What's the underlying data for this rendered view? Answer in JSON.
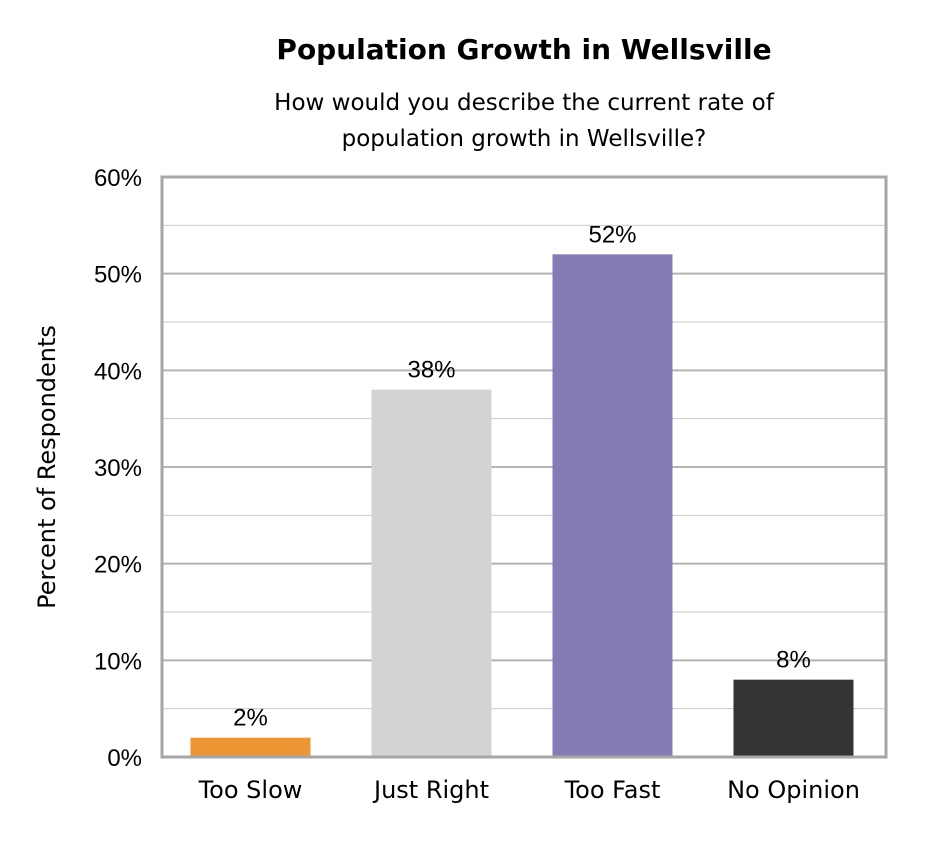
{
  "chart_data": {
    "type": "bar",
    "title": "Population Growth in Wellsville",
    "subtitle_lines": [
      "How would you describe the current rate of",
      "population growth in Wellsville?"
    ],
    "xlabel": "",
    "ylabel": "Percent of Respondents",
    "categories": [
      "Too Slow",
      "Just Right",
      "Too Fast",
      "No Opinion"
    ],
    "values": [
      2,
      38,
      52,
      8
    ],
    "data_labels": [
      "2%",
      "38%",
      "52%",
      "8%"
    ],
    "colors": [
      "#EE9633",
      "#D3D3D3",
      "#877BB5",
      "#333333"
    ],
    "ylim": [
      0,
      60
    ],
    "yticks": [
      0,
      10,
      20,
      30,
      40,
      50,
      60
    ],
    "ytick_labels": [
      "0%",
      "10%",
      "20%",
      "30%",
      "40%",
      "50%",
      "60%"
    ],
    "grid": true,
    "legend": "none"
  }
}
